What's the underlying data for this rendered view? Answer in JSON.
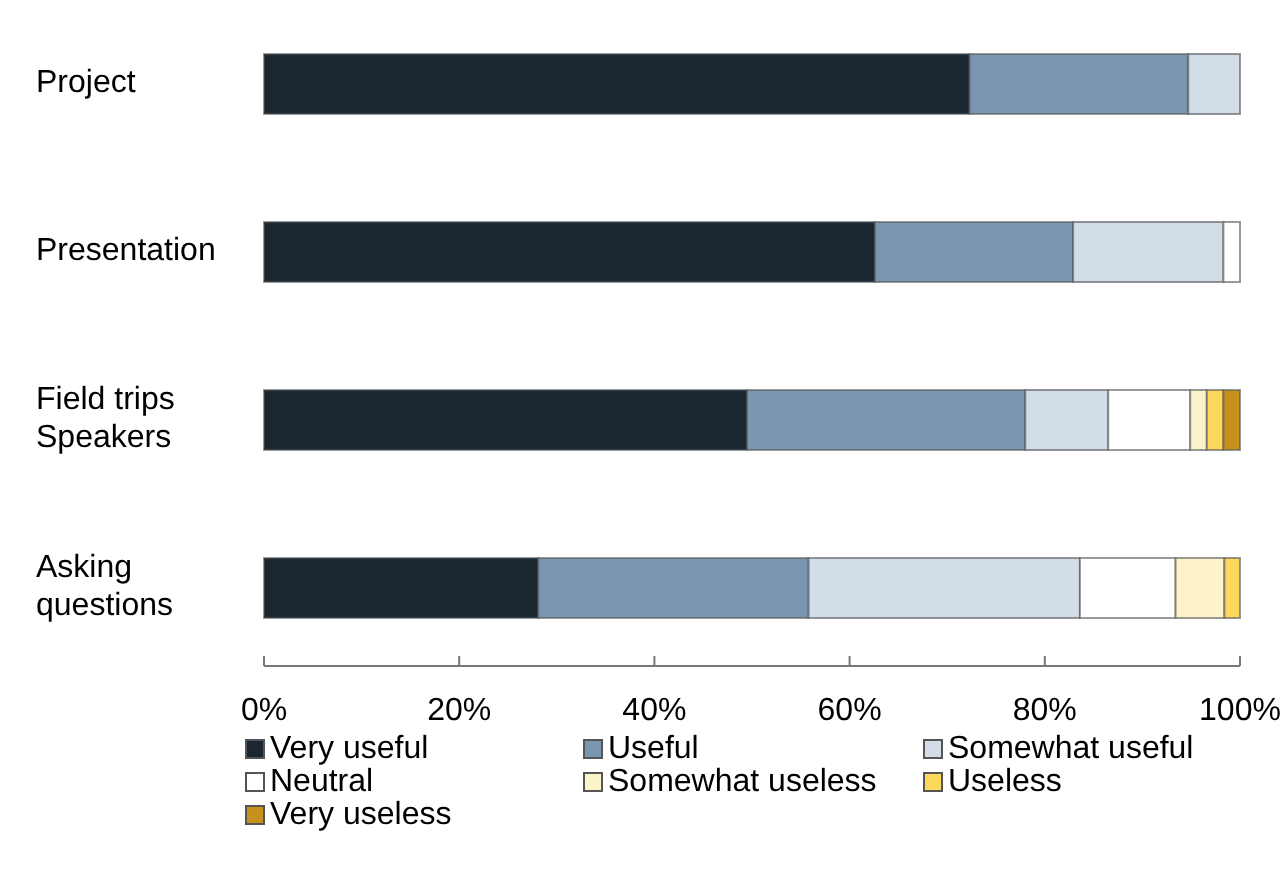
{
  "chart_data": {
    "type": "bar",
    "orientation": "horizontal",
    "stacked": true,
    "categories": [
      "Project",
      "Presentation",
      "Field trips\nSpeakers",
      "Asking\nquestions"
    ],
    "series": [
      {
        "name": "Very useful",
        "color": "#1b2631",
        "values": [
          72.3,
          62.6,
          49.5,
          28.1
        ]
      },
      {
        "name": "Useful",
        "color": "#7b96b2",
        "values": [
          22.4,
          20.3,
          28.5,
          27.7
        ]
      },
      {
        "name": "Somewhat useful",
        "color": "#d3dde8",
        "values": [
          5.3,
          15.4,
          8.5,
          27.8
        ]
      },
      {
        "name": "Neutral",
        "color": "#ffffff",
        "values": [
          0,
          1.7,
          8.4,
          9.8
        ]
      },
      {
        "name": "Somewhat useless",
        "color": "#fdf3ca",
        "values": [
          0,
          0,
          1.7,
          5.0
        ]
      },
      {
        "name": "Useless",
        "color": "#fbd75a",
        "values": [
          0,
          0,
          1.7,
          1.6
        ]
      },
      {
        "name": "Very useless",
        "color": "#c8901c",
        "values": [
          0,
          0,
          1.7,
          0
        ]
      }
    ],
    "xlim": [
      0,
      100
    ],
    "xticks": [
      {
        "value": 0,
        "label": "0%"
      },
      {
        "value": 20,
        "label": "20%"
      },
      {
        "value": 40,
        "label": "40%"
      },
      {
        "value": 60,
        "label": "60%"
      },
      {
        "value": 80,
        "label": "80%"
      },
      {
        "value": 100,
        "label": "100%"
      }
    ],
    "grid": false,
    "legend": "bottom"
  }
}
